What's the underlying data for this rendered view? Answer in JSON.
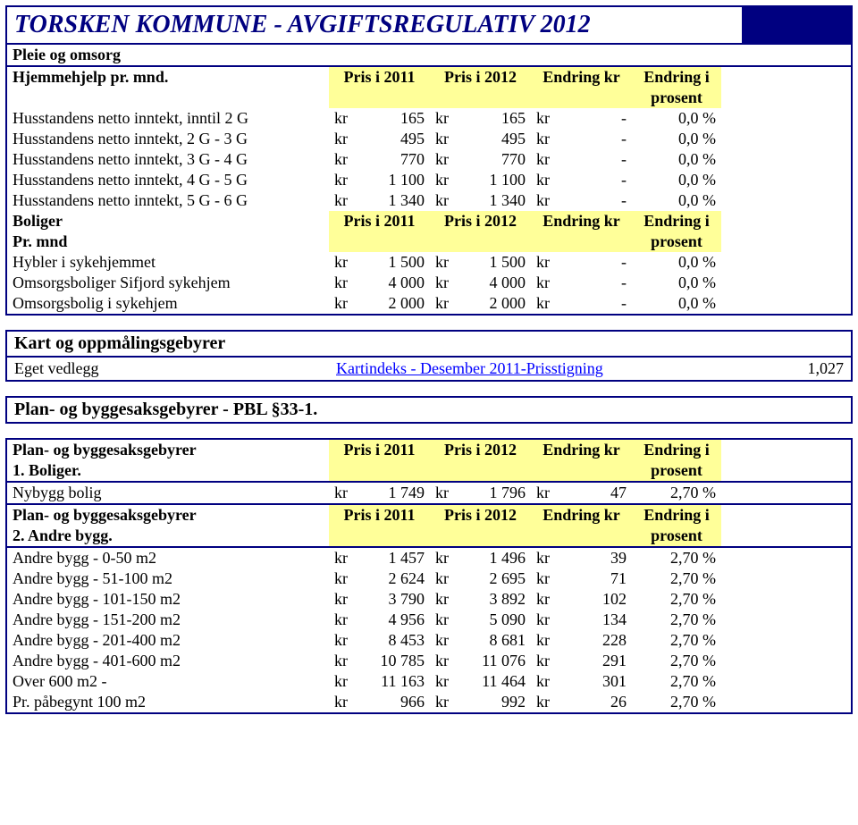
{
  "title": "TORSKEN KOMMUNE - AVGIFTSREGULATIV 2012",
  "section1": {
    "header": "Pleie og omsorg",
    "subheader": "Hjemmehjelp pr. mnd.",
    "col_p2011": "Pris i 2011",
    "col_p2012": "Pris i 2012",
    "col_ekr": "Endring kr",
    "col_epct_1": "Endring i",
    "col_epct_2": "prosent",
    "rows": [
      {
        "label": "Husstandens netto inntekt, inntil 2 G",
        "kr": "kr",
        "v2011": "165",
        "v2012": "165",
        "ekr": "-",
        "pct": "0,0 %"
      },
      {
        "label": "Husstandens netto inntekt, 2 G - 3 G",
        "kr": "kr",
        "v2011": "495",
        "v2012": "495",
        "ekr": "-",
        "pct": "0,0 %"
      },
      {
        "label": "Husstandens netto inntekt, 3 G - 4 G",
        "kr": "kr",
        "v2011": "770",
        "v2012": "770",
        "ekr": "-",
        "pct": "0,0 %"
      },
      {
        "label": "Husstandens netto inntekt, 4 G - 5 G",
        "kr": "kr",
        "v2011": "1 100",
        "v2012": "1 100",
        "ekr": "-",
        "pct": "0,0 %"
      },
      {
        "label": "Husstandens netto inntekt, 5 G - 6 G",
        "kr": "kr",
        "v2011": "1 340",
        "v2012": "1 340",
        "ekr": "-",
        "pct": "0,0 %"
      }
    ],
    "boliger_hdr1": "Boliger",
    "boliger_hdr2": "Pr. mnd",
    "boliger_rows": [
      {
        "label": "Hybler i sykehjemmet",
        "kr": "kr",
        "v2011": "1 500",
        "v2012": "1 500",
        "ekr": "-",
        "pct": "0,0 %"
      },
      {
        "label": "Omsorgsboliger Sifjord sykehjem",
        "kr": "kr",
        "v2011": "4 000",
        "v2012": "4 000",
        "ekr": "-",
        "pct": "0,0 %"
      },
      {
        "label": "Omsorgsbolig i sykehjem",
        "kr": "kr",
        "v2011": "2 000",
        "v2012": "2 000",
        "ekr": "-",
        "pct": "0,0 %"
      }
    ]
  },
  "kart": {
    "header": "Kart og oppmålingsgebyrer",
    "row_label": "Eget vedlegg",
    "link_text": "Kartindeks -  Desember 2011-Prisstigning",
    "value": "1,027"
  },
  "plan_header": "Plan- og byggesaksgebyrer - PBL §33-1.",
  "plan1": {
    "hdr1": "Plan- og byggesaksgebyrer",
    "hdr2": "1. Boliger.",
    "col_p2011": "Pris i 2011",
    "col_p2012": "Pris i 2012",
    "col_ekr": "Endring kr",
    "col_epct_1": "Endring i",
    "col_epct_2": "prosent",
    "rows": [
      {
        "label": "Nybygg bolig",
        "kr": "kr",
        "v2011": "1 749",
        "v2012": "1 796",
        "ekr": "47",
        "pct": "2,70 %"
      }
    ]
  },
  "plan2": {
    "hdr1": "Plan- og byggesaksgebyrer",
    "hdr2": "2. Andre bygg.",
    "col_p2011": "Pris i 2011",
    "col_p2012": "Pris i 2012",
    "col_ekr": "Endring kr",
    "col_epct_1": "Endring i",
    "col_epct_2": "prosent",
    "rows": [
      {
        "label": "Andre bygg - 0-50 m2",
        "kr": "kr",
        "v2011": "1 457",
        "v2012": "1 496",
        "ekr": "39",
        "pct": "2,70 %"
      },
      {
        "label": "Andre bygg - 51-100 m2",
        "kr": "kr",
        "v2011": "2 624",
        "v2012": "2 695",
        "ekr": "71",
        "pct": "2,70 %"
      },
      {
        "label": "Andre bygg - 101-150 m2",
        "kr": "kr",
        "v2011": "3 790",
        "v2012": "3 892",
        "ekr": "102",
        "pct": "2,70 %"
      },
      {
        "label": "Andre bygg - 151-200 m2",
        "kr": "kr",
        "v2011": "4 956",
        "v2012": "5 090",
        "ekr": "134",
        "pct": "2,70 %"
      },
      {
        "label": "Andre bygg - 201-400 m2",
        "kr": "kr",
        "v2011": "8 453",
        "v2012": "8 681",
        "ekr": "228",
        "pct": "2,70 %"
      },
      {
        "label": "Andre bygg - 401-600 m2",
        "kr": "kr",
        "v2011": "10 785",
        "v2012": "11 076",
        "ekr": "291",
        "pct": "2,70 %"
      },
      {
        "label": "Over 600 m2 -",
        "kr": "kr",
        "v2011": "11 163",
        "v2012": "11 464",
        "ekr": "301",
        "pct": "2,70 %"
      },
      {
        "label": "Pr. påbegynt 100 m2",
        "kr": "kr",
        "v2011": "966",
        "v2012": "992",
        "ekr": "26",
        "pct": "2,70 %"
      }
    ]
  },
  "colors": {
    "navy": "#000080",
    "yellow": "#ffff99",
    "link": "#0000ff"
  }
}
